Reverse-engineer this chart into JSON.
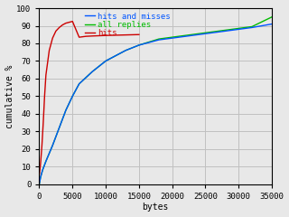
{
  "title": "",
  "xlabel": "bytes",
  "ylabel": "cumulative %",
  "xlim": [
    0,
    35000
  ],
  "ylim": [
    0,
    100
  ],
  "xticks": [
    0,
    5000,
    10000,
    15000,
    20000,
    25000,
    30000,
    35000
  ],
  "yticks": [
    0,
    10,
    20,
    30,
    40,
    50,
    60,
    70,
    80,
    90,
    100
  ],
  "grid_color": "#c0c0c0",
  "bg_color": "#e8e8e8",
  "plot_bg": "#e8e8e8",
  "series": [
    {
      "label": "all replies",
      "color": "#0055ff",
      "lw": 1.0,
      "points_x": [
        0,
        200,
        500,
        1000,
        2000,
        3000,
        4000,
        5000,
        6000,
        8000,
        10000,
        13000,
        15000,
        18000,
        20000,
        25000,
        28000,
        30000,
        32000,
        35000
      ],
      "points_y": [
        0,
        4,
        8,
        13,
        22,
        32,
        42,
        50,
        57,
        64,
        70,
        76,
        79,
        82,
        83,
        85.5,
        87,
        88,
        89,
        91
      ]
    },
    {
      "label": "hits and misses",
      "color": "#00bb00",
      "lw": 1.0,
      "points_x": [
        0,
        200,
        500,
        1000,
        2000,
        3000,
        4000,
        5000,
        6000,
        8000,
        10000,
        13000,
        15000,
        18000,
        20000,
        25000,
        28000,
        30000,
        32000,
        35000
      ],
      "points_y": [
        0,
        4,
        8,
        13,
        22,
        32,
        42,
        50,
        57,
        64,
        70,
        76,
        79,
        82.5,
        83.5,
        86,
        87.5,
        88.5,
        89.5,
        95
      ]
    },
    {
      "label": "hits",
      "color": "#cc0000",
      "lw": 1.0,
      "points_x": [
        0,
        100,
        200,
        400,
        600,
        800,
        1000,
        1500,
        2000,
        2500,
        3000,
        3500,
        4000,
        5000,
        6000,
        7000,
        8000,
        10000,
        12000,
        15000
      ],
      "points_y": [
        5,
        8,
        12,
        22,
        35,
        50,
        62,
        76,
        83,
        87,
        89,
        90.5,
        91.5,
        92.5,
        83.5,
        84,
        84.2,
        84.5,
        84.7,
        85
      ]
    }
  ],
  "font_family": "monospace",
  "font_size": 7,
  "tick_font_size": 6.5
}
